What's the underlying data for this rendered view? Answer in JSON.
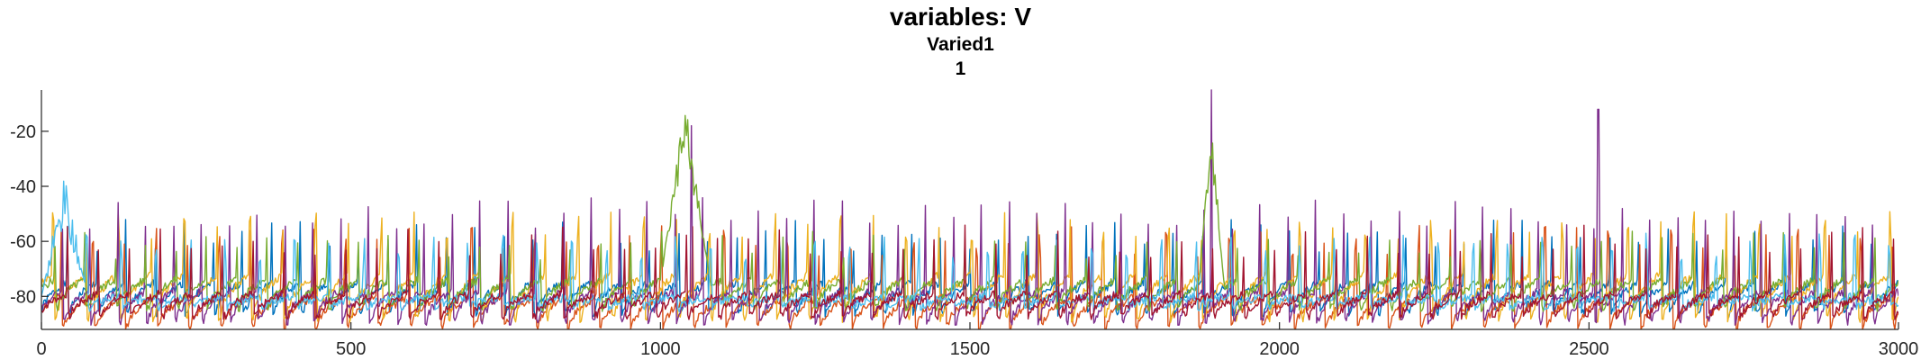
{
  "chart_data": {
    "type": "line",
    "title": "variables: V",
    "subtitle_lines": [
      "Varied1",
      "1"
    ],
    "xlabel": "",
    "ylabel": "",
    "xlim": [
      0,
      3000
    ],
    "ylim": [
      -92,
      -5
    ],
    "xticks": [
      0,
      500,
      1000,
      1500,
      2000,
      2500,
      3000
    ],
    "xtick_labels": [
      "0",
      "500",
      "1000",
      "1500",
      "2000",
      "2500",
      "3000"
    ],
    "yticks": [
      -20,
      -40,
      -60,
      -80
    ],
    "ytick_labels": [
      "-20",
      "-40",
      "-60",
      "-80"
    ],
    "grid": false,
    "legend": "none",
    "series": [
      {
        "color": "#0072BD",
        "baseline": -75,
        "period": 47,
        "phase": 5,
        "spike_peak": -58,
        "undershoot": -86,
        "seed": 1
      },
      {
        "color": "#D95319",
        "baseline": -80,
        "period": 51,
        "phase": 20,
        "spike_peak": -60,
        "undershoot": -91,
        "seed": 2
      },
      {
        "color": "#EDB120",
        "baseline": -72,
        "period": 53,
        "phase": 35,
        "spike_peak": -55,
        "undershoot": -88,
        "seed": 3
      },
      {
        "color": "#7E2F8E",
        "baseline": -78,
        "period": 45,
        "phase": 12,
        "spike_peak": -50,
        "undershoot": -89,
        "seed": 4
      },
      {
        "color": "#77AC30",
        "baseline": -74,
        "period": 49,
        "phase": 28,
        "spike_peak": -62,
        "undershoot": -84,
        "seed": 5
      },
      {
        "color": "#4DBEEE",
        "baseline": -80,
        "period": 56,
        "phase": 40,
        "spike_peak": -63,
        "undershoot": -84,
        "seed": 6
      },
      {
        "color": "#A2142F",
        "baseline": -79,
        "period": 50,
        "phase": 8,
        "spike_peak": -60,
        "undershoot": -87,
        "seed": 7
      }
    ],
    "notable_events": [
      {
        "series_color": "#77AC30",
        "x_range": [
          1000,
          1080
        ],
        "peak": -18
      },
      {
        "series_color": "#77AC30",
        "x_range": [
          1870,
          1910
        ],
        "peak": -24
      },
      {
        "series_color": "#7E2F8E",
        "x": 1890,
        "peak": -2
      },
      {
        "series_color": "#7E2F8E",
        "x": 2515,
        "peak": -12
      },
      {
        "series_color": "#7E2F8E",
        "x": 1050,
        "peak": -18
      },
      {
        "series_color": "#4DBEEE",
        "x_range": [
          0,
          75
        ],
        "peak": -45
      }
    ]
  }
}
